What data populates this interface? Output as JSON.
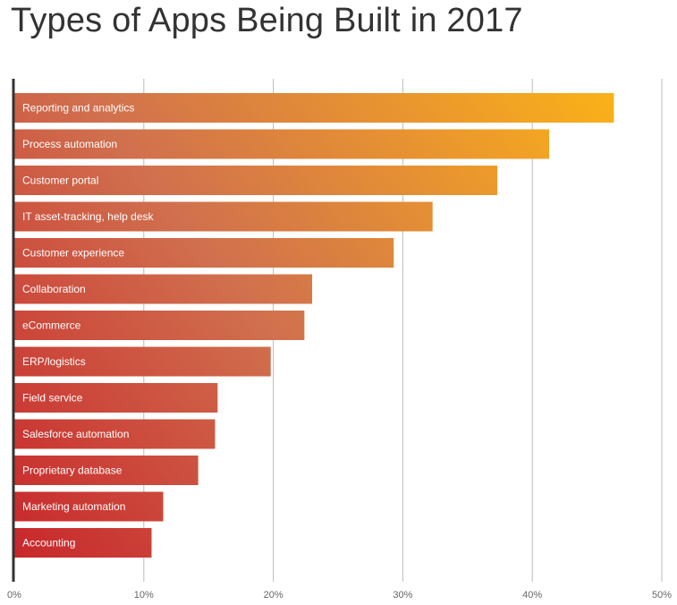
{
  "chart_data": {
    "type": "bar",
    "orientation": "horizontal",
    "title": "Types of Apps Being Built in 2017",
    "xlabel": "",
    "ylabel": "",
    "xlim": [
      0,
      50
    ],
    "x_ticks": [
      0,
      10,
      20,
      30,
      40,
      50
    ],
    "x_tick_format": "%",
    "grid": "vertical",
    "legend": "none",
    "categories": [
      "Reporting and analytics",
      "Process automation",
      "Customer portal",
      "IT asset-tracking, help desk",
      "Customer experience",
      "Collaboration",
      "eCommerce",
      "ERP/logistics",
      "Field service",
      "Salesforce automation",
      "Proprietary database",
      "Marketing automation",
      "Accounting"
    ],
    "values": [
      46.3,
      41.3,
      37.3,
      32.3,
      29.3,
      23.0,
      22.4,
      19.8,
      15.7,
      15.5,
      14.2,
      11.5,
      10.6
    ],
    "colors": {
      "bar_gradient_start": "#c8262b",
      "bar_gradient_mid": "#d0704e",
      "bar_gradient_end": "#fbb217",
      "gridline": "#bbbbbb",
      "axis": "#333333",
      "label_text": "#ffffff",
      "tick_text": "#666666"
    }
  }
}
